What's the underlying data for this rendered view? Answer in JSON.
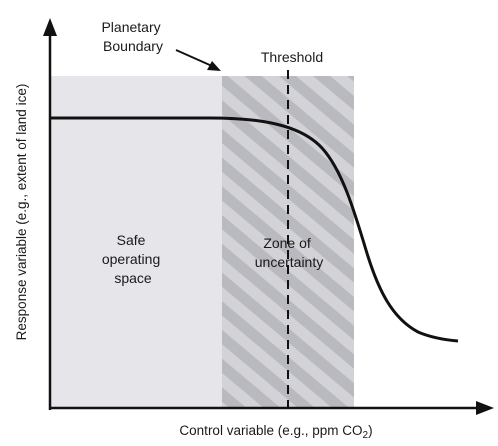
{
  "diagram": {
    "x_axis_label": "Control variable (e.g., ppm CO",
    "x_axis_label_subscript": "2",
    "x_axis_label_suffix": ")",
    "y_axis_label": "Response variable (e.g., extent of land ice)",
    "planetary_boundary_label": [
      "Planetary",
      "Boundary"
    ],
    "threshold_label": "Threshold",
    "safe_space_label": [
      "Safe",
      "operating",
      "space"
    ],
    "uncertainty_label": [
      "Zone of",
      "uncertainty"
    ],
    "colors": {
      "safe_fill": "#e6e6ea",
      "hatch_light": "#cfcfd4",
      "hatch_dark": "#b8b8bf",
      "curve": "#111111",
      "axis": "#111111"
    }
  }
}
